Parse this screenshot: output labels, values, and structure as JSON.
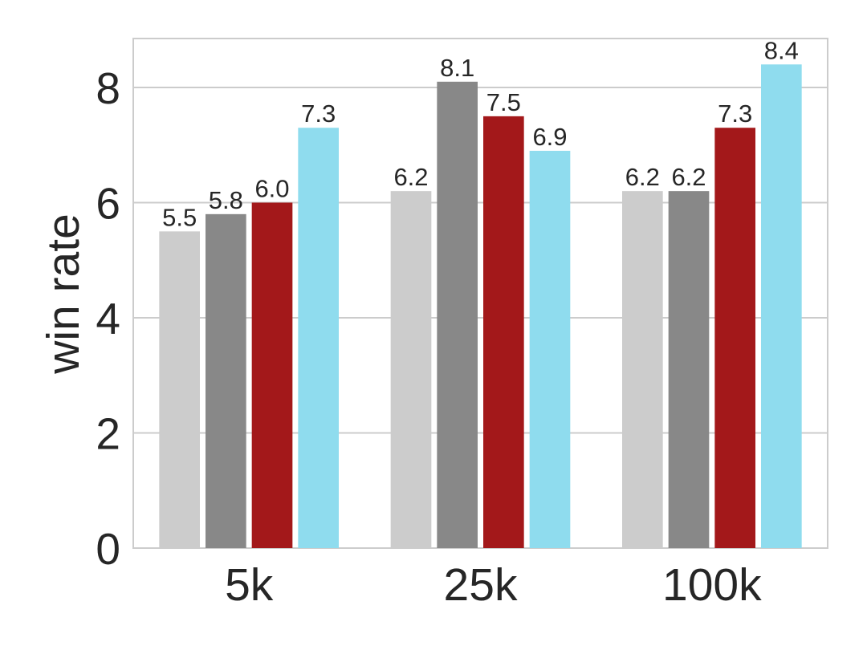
{
  "chart_data": {
    "type": "bar",
    "title": "",
    "xlabel": "",
    "ylabel": "win rate",
    "ylim": [
      0,
      8.85
    ],
    "yticks": [
      "0",
      "2",
      "4",
      "6",
      "8"
    ],
    "categories": [
      "5k",
      "25k",
      "100k"
    ],
    "series": [
      {
        "color": "#cccccc",
        "values": [
          5.5,
          6.2,
          6.2
        ]
      },
      {
        "color": "#888888",
        "values": [
          5.8,
          8.1,
          6.2
        ]
      },
      {
        "color": "#a3181a",
        "values": [
          6.0,
          7.5,
          7.3
        ]
      },
      {
        "color": "#8fdcee",
        "values": [
          7.3,
          6.9,
          8.4
        ]
      }
    ],
    "grid": true,
    "legend": "none"
  }
}
